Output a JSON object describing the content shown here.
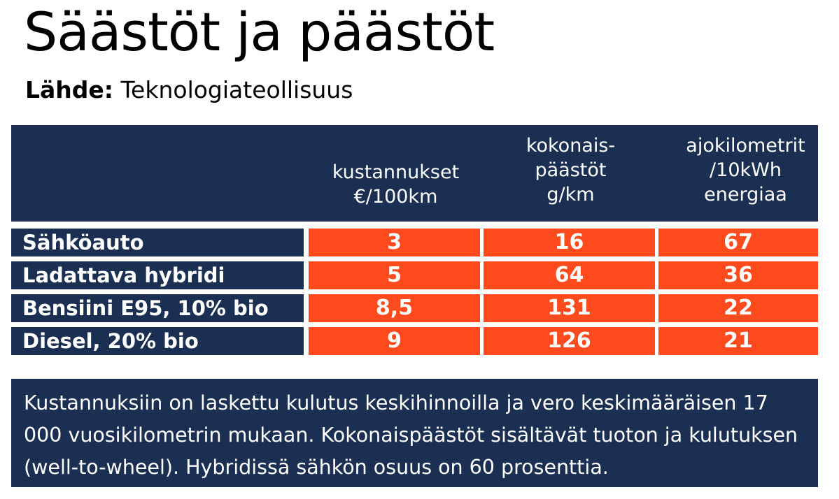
{
  "title": "Säästöt ja päästöt",
  "source": {
    "label": "Lähde:",
    "value": "Teknologiateollisuus"
  },
  "chart_data": {
    "type": "table",
    "columns": [
      "kustannukset\n€/100km",
      "kokonais-\npäästöt\ng/km",
      "ajokilometrit\n/10kWh\nenergiaa"
    ],
    "rows": [
      {
        "label": "Sähköauto",
        "values": [
          "3",
          "16",
          "67"
        ]
      },
      {
        "label": "Ladattava hybridi",
        "values": [
          "5",
          "64",
          "36"
        ]
      },
      {
        "label": "Bensiini E95, 10% bio",
        "values": [
          "8,5",
          "131",
          "22"
        ]
      },
      {
        "label": "Diesel, 20% bio",
        "values": [
          "9",
          "126",
          "21"
        ]
      }
    ]
  },
  "note": "Kustannuksiin on laskettu kulutus keskihinnoilla ja vero keskimääräisen 17 000 vuosikilometrin mukaan. Kokonaispäästöt sisältävät tuoton ja kulutuksen (well-to-wheel). Hybridissä sähkön osuus on 60 prosenttia.",
  "colors": {
    "navy": "#1b2f52",
    "orange": "#fe4a1c",
    "text_light": "#ffffff"
  }
}
